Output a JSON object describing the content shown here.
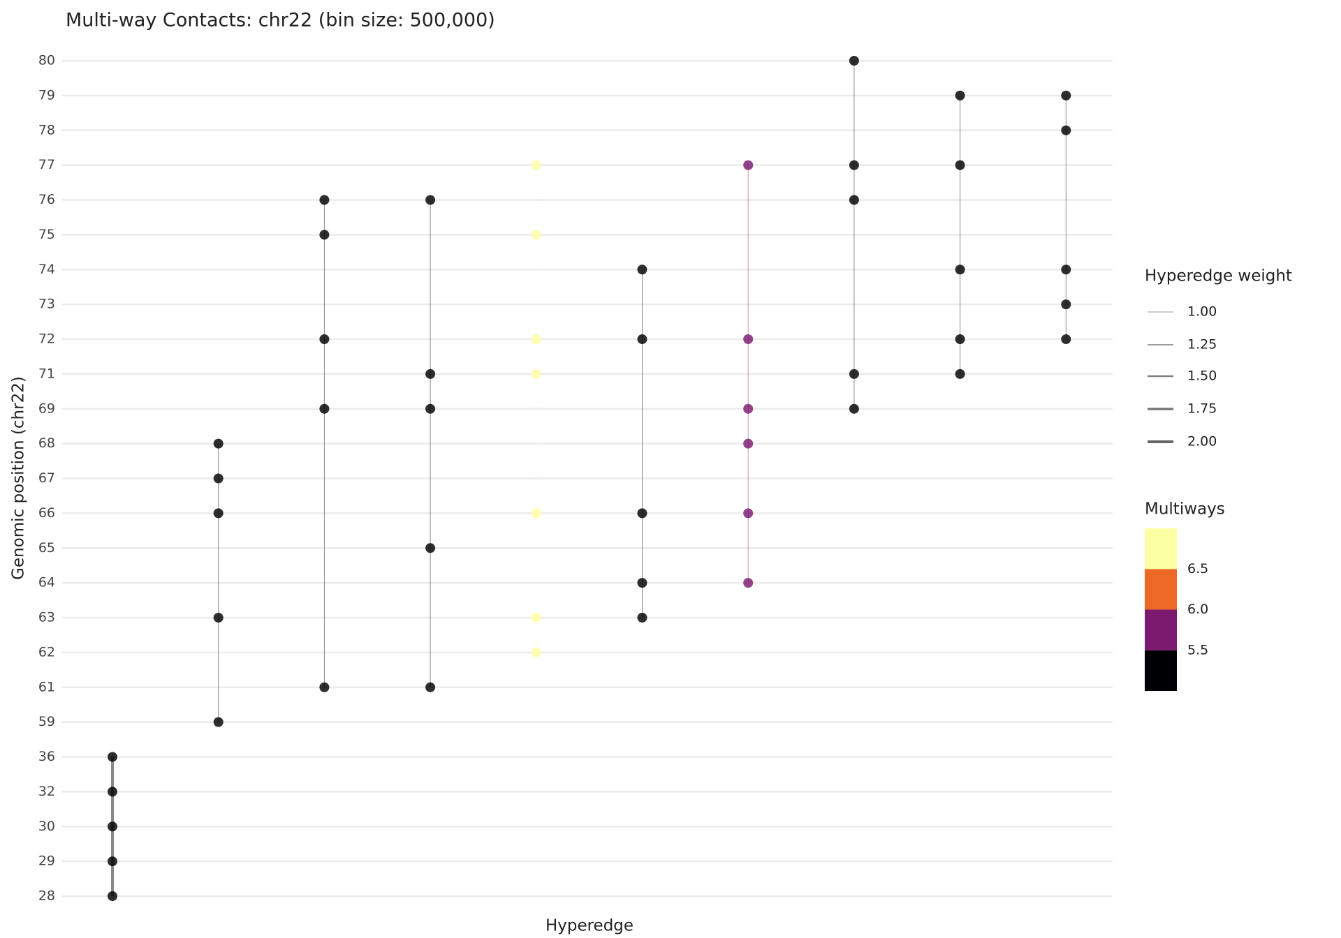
{
  "chart_data": {
    "type": "hyperedge",
    "title": "Multi-way Contacts: chr22 (bin size: 500,000)",
    "x_label": "Hyperedge",
    "y_label": "Genomic position (chr22)",
    "y_categories": [
      28,
      29,
      30,
      32,
      36,
      59,
      61,
      62,
      63,
      64,
      65,
      66,
      67,
      68,
      69,
      71,
      72,
      73,
      74,
      75,
      76,
      77,
      78,
      79,
      80
    ],
    "grid": true,
    "series": [
      {
        "values": [
          28,
          29,
          30,
          32,
          36
        ],
        "weight": 2,
        "multiways": 5
      },
      {
        "values": [
          59,
          63,
          66,
          67,
          68
        ],
        "weight": 1,
        "multiways": 5
      },
      {
        "values": [
          61,
          69,
          72,
          75,
          76
        ],
        "weight": 1,
        "multiways": 5
      },
      {
        "values": [
          61,
          65,
          69,
          71,
          76
        ],
        "weight": 1,
        "multiways": 5
      },
      {
        "values": [
          62,
          63,
          66,
          71,
          72,
          75,
          77
        ],
        "weight": 1,
        "multiways": 7
      },
      {
        "values": [
          63,
          64,
          66,
          72,
          74
        ],
        "weight": 1,
        "multiways": 5
      },
      {
        "values": [
          64,
          66,
          68,
          69,
          72,
          77
        ],
        "weight": 1,
        "multiways": 6
      },
      {
        "values": [
          69,
          71,
          76,
          77,
          80
        ],
        "weight": 1,
        "multiways": 5
      },
      {
        "values": [
          71,
          72,
          74,
          77,
          79
        ],
        "weight": 1,
        "multiways": 5
      },
      {
        "values": [
          72,
          73,
          74,
          78,
          79
        ],
        "weight": 1,
        "multiways": 5
      }
    ],
    "weight_legend": {
      "title": "Hyperedge weight",
      "breaks": [
        {
          "value": 1,
          "label": "1.00"
        },
        {
          "value": 1.25,
          "label": "1.25"
        },
        {
          "value": 1.5,
          "label": "1.50"
        },
        {
          "value": 1.75,
          "label": "1.75"
        },
        {
          "value": 2,
          "label": "2.00"
        }
      ]
    },
    "multiways_legend": {
      "title": "Multiways",
      "limits": [
        5,
        7
      ],
      "breaks": [
        5.5,
        {
          "value": 6,
          "label": "6.0"
        },
        6.5
      ],
      "colors": [
        "#000004",
        "#7b1a6f",
        "#ed6925",
        "#fcffa4"
      ]
    }
  }
}
